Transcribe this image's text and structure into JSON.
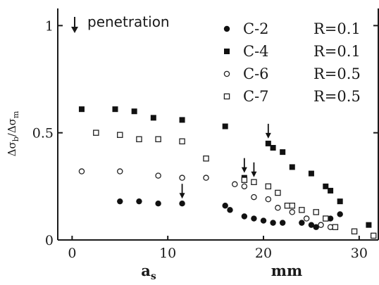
{
  "chart_data": {
    "type": "scatter",
    "title": "",
    "xlabel": "a_s",
    "xunit": "mm",
    "ylabel": "Δσ_b/Δσ_m",
    "xlim": [
      -1.5,
      32
    ],
    "ylim": [
      0,
      1.08
    ],
    "x_ticks": [
      0,
      10,
      20,
      30
    ],
    "x_tick_labels": [
      "0",
      "10",
      "20",
      "30"
    ],
    "y_ticks": [
      0,
      0.5,
      1
    ],
    "y_tick_labels": [
      "0",
      "0.5",
      "1"
    ],
    "grid": false,
    "legend_position": "top-right",
    "annotation": "penetration",
    "series": [
      {
        "name": "C-2",
        "R_label": "R=0.1",
        "marker": "filled-circle",
        "x": [
          5.0,
          7.0,
          9.0,
          11.5,
          16.0,
          16.5,
          18.0,
          19.0,
          20.0,
          21.0,
          22.0,
          24.0,
          25.0,
          25.5,
          26.0,
          27.0,
          28.0
        ],
        "y": [
          0.18,
          0.18,
          0.17,
          0.17,
          0.16,
          0.14,
          0.11,
          0.1,
          0.09,
          0.08,
          0.08,
          0.08,
          0.07,
          0.06,
          0.07,
          0.1,
          0.12
        ]
      },
      {
        "name": "C-4",
        "R_label": "R=0.1",
        "marker": "filled-square",
        "x": [
          1.0,
          4.5,
          6.5,
          8.5,
          11.5,
          16.0,
          18.0,
          20.5,
          21.0,
          22.0,
          23.0,
          25.0,
          26.5,
          27.0,
          28.0,
          31.0
        ],
        "y": [
          0.61,
          0.61,
          0.6,
          0.57,
          0.56,
          0.53,
          0.29,
          0.45,
          0.43,
          0.41,
          0.34,
          0.31,
          0.25,
          0.23,
          0.18,
          0.07
        ]
      },
      {
        "name": "C-6",
        "R_label": "R=0.5",
        "marker": "open-circle",
        "x": [
          1.0,
          5.0,
          9.0,
          11.5,
          14.0,
          17.0,
          18.0,
          19.0,
          20.5,
          21.5,
          23.0,
          24.5,
          26.0,
          27.0
        ],
        "y": [
          0.32,
          0.32,
          0.3,
          0.29,
          0.29,
          0.26,
          0.25,
          0.2,
          0.19,
          0.15,
          0.13,
          0.1,
          0.07,
          0.06
        ]
      },
      {
        "name": "C-7",
        "R_label": "R=0.5",
        "marker": "open-square",
        "x": [
          2.5,
          5.0,
          7.0,
          9.0,
          11.5,
          14.0,
          18.0,
          19.0,
          20.5,
          21.5,
          22.5,
          23.0,
          24.0,
          25.5,
          26.5,
          27.5,
          29.5,
          31.5
        ],
        "y": [
          0.5,
          0.49,
          0.47,
          0.47,
          0.46,
          0.38,
          0.28,
          0.27,
          0.25,
          0.22,
          0.16,
          0.16,
          0.14,
          0.13,
          0.1,
          0.06,
          0.04,
          0.02
        ]
      }
    ],
    "penetration_points": [
      {
        "x": 11.5,
        "y": 0.17
      },
      {
        "x": 18.0,
        "y": 0.29
      },
      {
        "x": 19.0,
        "y": 0.27
      },
      {
        "x": 20.5,
        "y": 0.45
      }
    ]
  }
}
